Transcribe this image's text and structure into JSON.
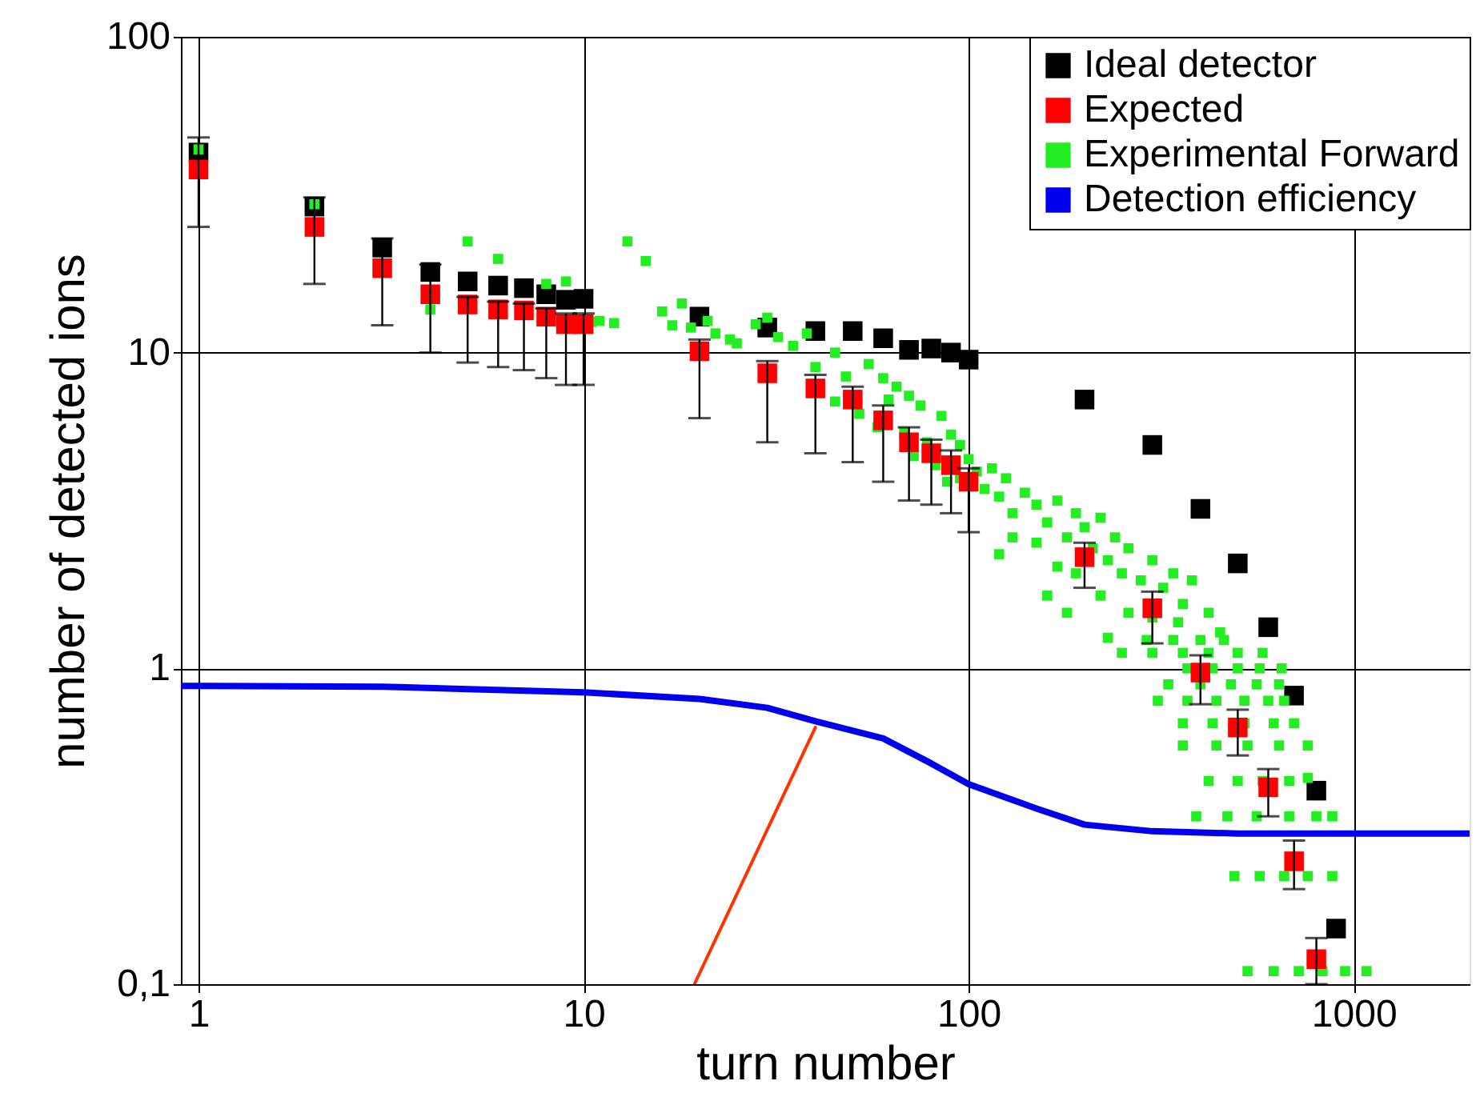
{
  "chart_data": {
    "type": "scatter",
    "xlabel": "turn number",
    "ylabel": "number of detected ions",
    "log": "xy",
    "grid": true,
    "legend": "top right",
    "marker": "square",
    "xlim": [
      0.9,
      2000
    ],
    "xticks": [
      1,
      10,
      100,
      {
        "value": 1000,
        "label": "1000"
      }
    ],
    "ylim": [
      0.1,
      100
    ],
    "yticks": [
      {
        "value": 0.1,
        "label": "0,1"
      },
      1,
      10,
      100
    ],
    "series": [
      {
        "name": "Ideal detector",
        "color": "#000000",
        "x": [
          1,
          2,
          3,
          4,
          5,
          6,
          7,
          8,
          9,
          10,
          20,
          30,
          40,
          50,
          60,
          70,
          80,
          90,
          100,
          200,
          300,
          400,
          500,
          600,
          700,
          800,
          900
        ],
        "values": [
          43,
          29,
          21.5,
          18,
          16.8,
          16.3,
          16,
          15.3,
          14.7,
          14.8,
          13,
          12,
          11.7,
          11.7,
          11.1,
          10.2,
          10.3,
          10,
          9.5,
          7.1,
          5.1,
          3.2,
          2.15,
          1.35,
          0.82,
          0.41,
          0.15
        ]
      },
      {
        "name": "Expected",
        "color": "#ff0000",
        "x": [
          1,
          2,
          3,
          4,
          5,
          6,
          7,
          8,
          9,
          10,
          20,
          30,
          40,
          50,
          60,
          70,
          80,
          90,
          100,
          200,
          300,
          400,
          500,
          600,
          700,
          800
        ],
        "values": [
          38,
          25,
          18.5,
          15.3,
          14.2,
          13.7,
          13.6,
          13,
          12.3,
          12.3,
          10.1,
          8.6,
          7.7,
          7.1,
          6.1,
          5.2,
          4.8,
          4.4,
          3.9,
          2.25,
          1.55,
          0.97,
          0.65,
          0.42,
          0.245,
          0.12
        ],
        "errors": [
          [
            25,
            48
          ],
          [
            16.5,
            31
          ],
          [
            12.2,
            23
          ],
          [
            10,
            19
          ],
          [
            9.3,
            15
          ],
          [
            9,
            14.5
          ],
          [
            8.8,
            14.3
          ],
          [
            8.3,
            13.8
          ],
          [
            7.9,
            13.3
          ],
          [
            7.9,
            13.3
          ],
          [
            6.2,
            11
          ],
          [
            5.2,
            9.4
          ],
          [
            4.8,
            8.5
          ],
          [
            4.5,
            7.8
          ],
          [
            3.9,
            6.8
          ],
          [
            3.4,
            5.8
          ],
          [
            3.3,
            5.3
          ],
          [
            3.1,
            4.9
          ],
          [
            2.7,
            4.3
          ],
          [
            1.8,
            2.5
          ],
          [
            1.2,
            1.75
          ],
          [
            0.77,
            1.1
          ],
          [
            0.53,
            0.74
          ],
          [
            0.34,
            0.48
          ],
          [
            0.2,
            0.285
          ],
          [
            0.1,
            0.14
          ]
        ]
      },
      {
        "name": "Experimental Forward",
        "color": "#22ee22",
        "x": [
          1,
          2,
          4,
          5,
          6,
          8,
          9,
          10.5,
          11,
          12,
          13,
          14.5,
          16,
          17,
          18,
          19,
          21,
          22,
          24,
          25,
          28,
          30,
          32,
          35,
          38,
          40,
          45,
          45,
          48,
          52,
          55,
          58,
          60,
          62,
          65,
          68,
          70,
          72,
          75,
          78,
          82,
          85,
          88,
          90,
          95,
          95,
          100,
          105,
          110,
          115,
          120,
          120,
          125,
          130,
          130,
          140,
          150,
          150,
          160,
          160,
          170,
          170,
          180,
          180,
          190,
          190,
          200,
          210,
          220,
          220,
          230,
          230,
          240,
          250,
          260,
          260,
          280,
          300,
          300,
          320,
          340,
          350,
          360,
          380,
          420,
          450,
          290,
          340,
          400,
          460,
          250,
          300,
          360,
          420,
          500,
          580,
          370,
          430,
          500,
          570,
          650,
          330,
          400,
          480,
          560,
          640,
          310,
          370,
          440,
          520,
          600,
          660,
          360,
          430,
          520,
          620,
          700,
          360,
          440,
          530,
          640,
          760,
          420,
          500,
          580,
          680,
          760,
          390,
          470,
          560,
          680,
          800,
          880,
          490,
          570,
          660,
          760,
          880,
          530,
          620,
          720,
          830,
          950,
          1080
        ],
        "values": [
          44,
          29.5,
          13.7,
          22.5,
          19.8,
          16.5,
          16.8,
          12.5,
          12.6,
          12.4,
          22.5,
          19.5,
          13.5,
          12.2,
          14.3,
          12,
          12.6,
          11.5,
          11,
          10.7,
          12.3,
          12.9,
          11.2,
          10.5,
          11.5,
          9,
          10,
          7,
          8.4,
          6.4,
          9.2,
          5.8,
          8.3,
          7.1,
          7.8,
          5.6,
          7.3,
          4.7,
          6.8,
          5.2,
          4.4,
          6.3,
          3.9,
          5.5,
          5.1,
          4,
          4.6,
          4.2,
          3.7,
          4.3,
          3.5,
          2.3,
          4,
          3.1,
          2.6,
          3.6,
          3.3,
          2.5,
          2.9,
          1.7,
          3.4,
          2.1,
          2.6,
          1.5,
          3.1,
          2,
          2.8,
          2.4,
          3,
          1.7,
          2.2,
          1.25,
          2.6,
          2,
          2.4,
          1.5,
          1.9,
          2.2,
          1.45,
          1.8,
          2,
          1.4,
          1.6,
          1.9,
          1.5,
          1.3,
          1.23,
          1.23,
          1.23,
          1.23,
          1.12,
          1.12,
          1.12,
          1.12,
          1.12,
          1.12,
          1,
          1,
          1,
          1,
          1,
          0.89,
          0.89,
          0.89,
          0.89,
          0.89,
          0.79,
          0.79,
          0.79,
          0.79,
          0.79,
          0.79,
          0.67,
          0.67,
          0.67,
          0.67,
          0.67,
          0.57,
          0.57,
          0.57,
          0.57,
          0.57,
          0.44,
          0.44,
          0.44,
          0.44,
          0.45,
          0.34,
          0.34,
          0.34,
          0.34,
          0.34,
          0.34,
          0.22,
          0.22,
          0.22,
          0.22,
          0.22,
          0.11,
          0.11,
          0.11,
          0.11,
          0.11,
          0.11
        ]
      },
      {
        "name": "Detection efficiency",
        "color": "#0000ee",
        "type": "line",
        "marker": "none",
        "line_style": "solid",
        "x": [
          0.9,
          1,
          3,
          5,
          10,
          20,
          30,
          40,
          60,
          80,
          100,
          150,
          200,
          300,
          500,
          1000,
          2000
        ],
        "values": [
          0.88,
          0.88,
          0.875,
          0.86,
          0.84,
          0.8,
          0.75,
          0.68,
          0.6,
          0.5,
          0.43,
          0.36,
          0.32,
          0.305,
          0.3,
          0.3,
          0.3
        ]
      },
      {
        "color": "#ff3300",
        "type": "line",
        "marker": "none",
        "line_style": "solid",
        "x": [
          19.4,
          40
        ],
        "values": [
          0.1,
          0.65
        ]
      }
    ]
  }
}
